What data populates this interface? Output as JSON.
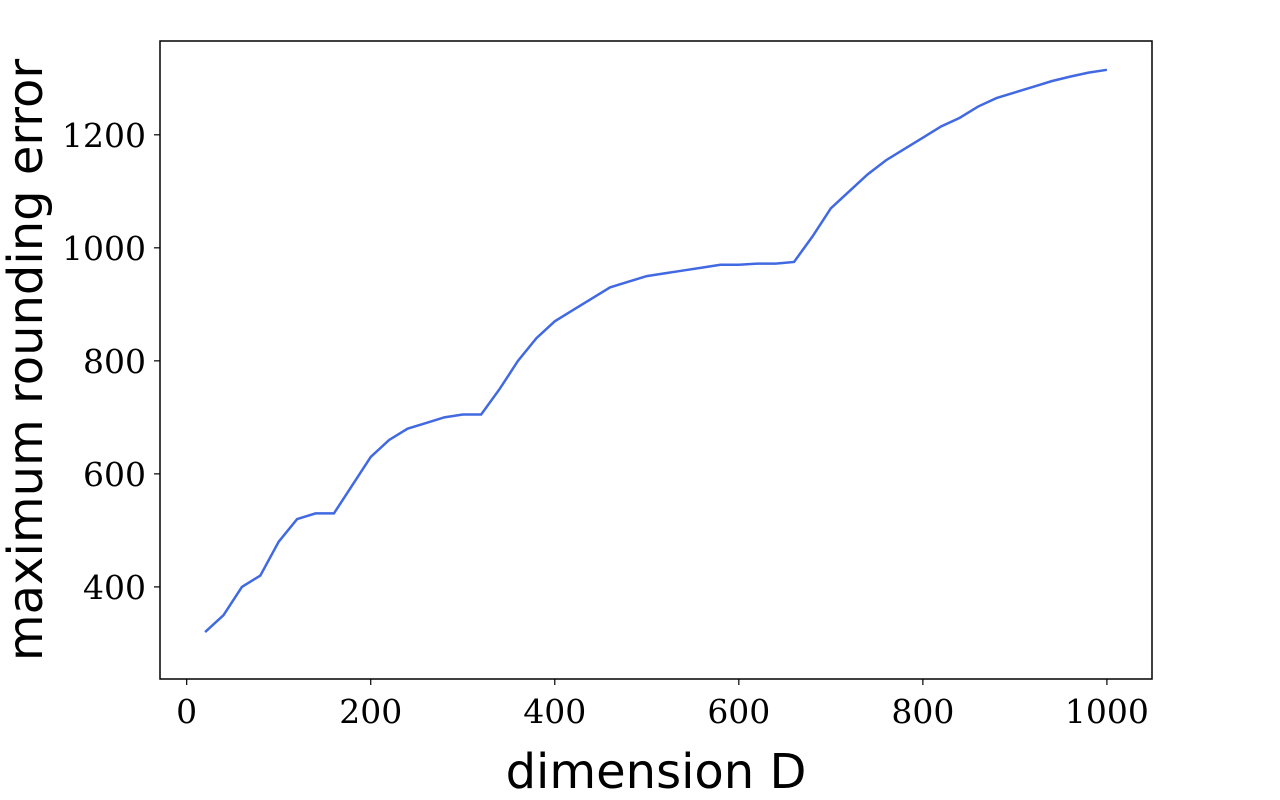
{
  "chart_data": {
    "type": "line",
    "xlabel": "dimension D",
    "ylabel": "maximum rounding error",
    "x": [
      20,
      40,
      60,
      80,
      100,
      120,
      140,
      160,
      180,
      200,
      220,
      240,
      260,
      280,
      300,
      320,
      340,
      360,
      380,
      400,
      420,
      440,
      460,
      480,
      500,
      520,
      540,
      560,
      580,
      600,
      620,
      640,
      660,
      680,
      700,
      720,
      740,
      760,
      780,
      800,
      820,
      840,
      860,
      880,
      900,
      920,
      940,
      960,
      980,
      1000
    ],
    "series": [
      {
        "color": "#4169e1",
        "values": [
          320,
          350,
          400,
          420,
          480,
          520,
          530,
          530,
          580,
          630,
          660,
          680,
          690,
          700,
          705,
          705,
          750,
          800,
          840,
          870,
          890,
          910,
          930,
          940,
          950,
          955,
          960,
          965,
          970,
          970,
          972,
          972,
          975,
          1020,
          1070,
          1100,
          1130,
          1155,
          1175,
          1195,
          1215,
          1230,
          1250,
          1265,
          1275,
          1285,
          1295,
          1303,
          1310,
          1315
        ]
      }
    ],
    "xlim": [
      -29,
      1049
    ],
    "ylim": [
      237,
      1366
    ],
    "xticks": [
      0,
      200,
      400,
      600,
      800,
      1000
    ],
    "yticks": [
      400,
      600,
      800,
      1000,
      1200
    ]
  }
}
